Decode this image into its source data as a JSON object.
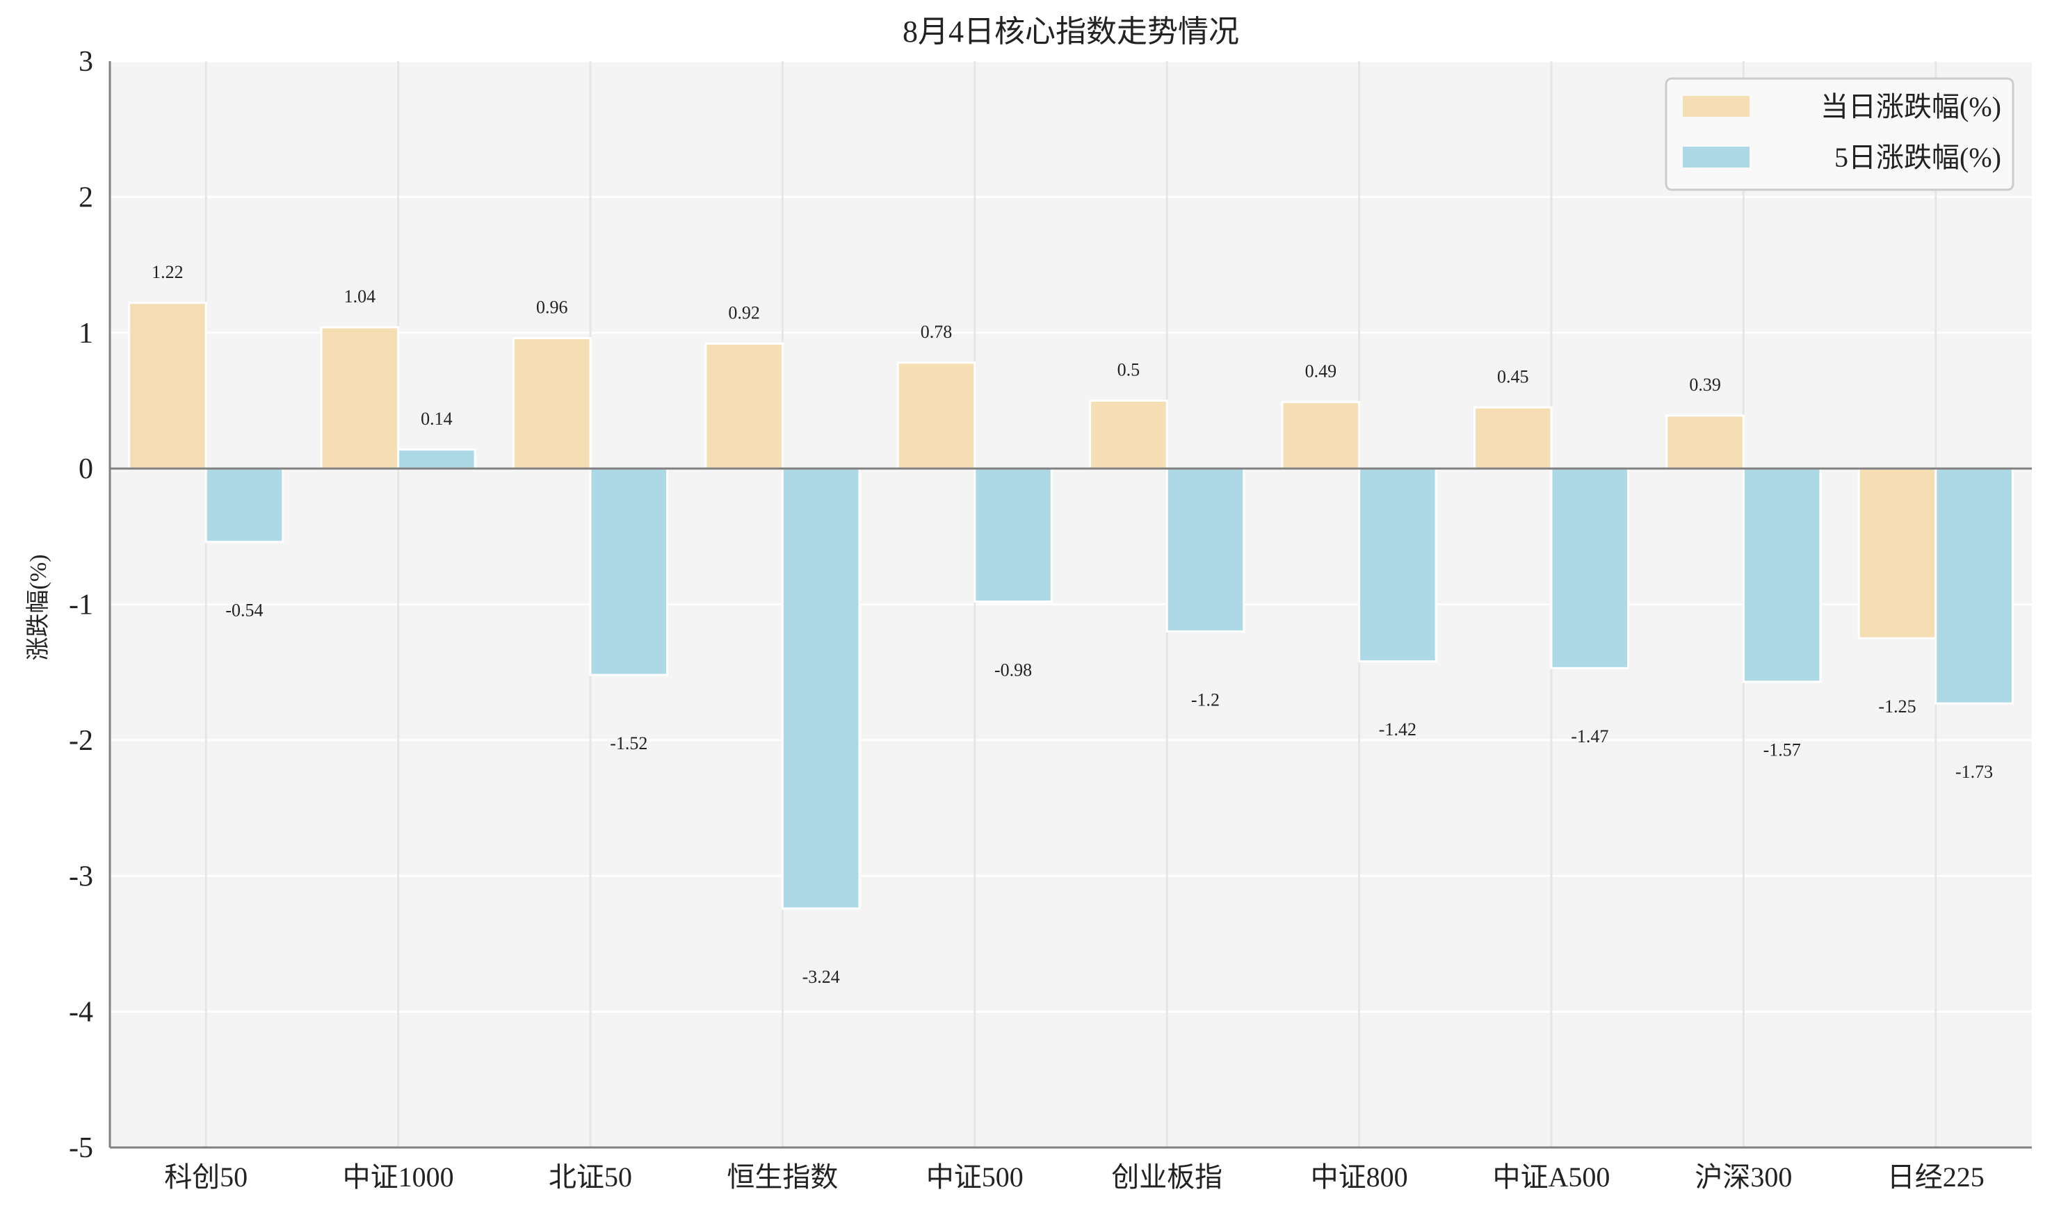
{
  "chart_data": {
    "type": "bar",
    "title": "8月4日核心指数走势情况",
    "xlabel": "",
    "ylabel": "涨跌幅(%)",
    "categories": [
      "科创50",
      "中证1000",
      "北证50",
      "恒生指数",
      "中证500",
      "创业板指",
      "中证800",
      "中证A500",
      "沪深300",
      "日经225"
    ],
    "series": [
      {
        "name": "当日涨跌幅(%)",
        "color": "#F5DEB3",
        "values": [
          1.22,
          1.04,
          0.96,
          0.92,
          0.78,
          0.5,
          0.49,
          0.45,
          0.39,
          -1.25
        ]
      },
      {
        "name": "5日涨跌幅(%)",
        "color": "#ADD8E6",
        "values": [
          -0.54,
          0.14,
          -1.52,
          -3.24,
          -0.98,
          -1.2,
          -1.42,
          -1.47,
          -1.57,
          -1.73
        ]
      }
    ],
    "ylim": [
      -5,
      3
    ],
    "yticks": [
      3,
      2,
      1,
      0,
      -1,
      -2,
      -3,
      -4,
      -5
    ],
    "grid": true,
    "legend_position": "top-right",
    "background": "#F4F4F4"
  }
}
